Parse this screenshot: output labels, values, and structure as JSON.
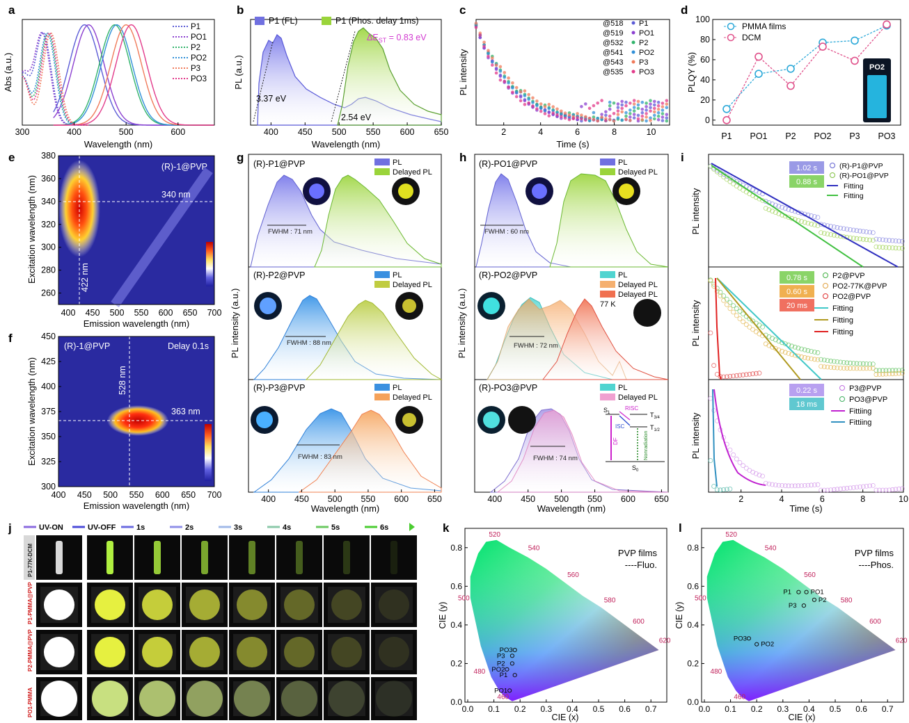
{
  "colors": {
    "P1": "#5b5bd6",
    "PO1": "#8b3fd0",
    "P2": "#2fb36a",
    "PO2": "#2f8fd8",
    "P3": "#f07a5a",
    "PO3": "#e23a8a"
  },
  "chart_data": [
    {
      "panel": "a",
      "type": "line",
      "xlabel": "Wavelength (nm)",
      "ylabel": "Abs (a.u.)",
      "xlim": [
        300,
        670
      ],
      "xticks": [
        300,
        400,
        500,
        600
      ],
      "series": [
        {
          "name": "P1",
          "abs_peak": 340,
          "pl_peak": 420
        },
        {
          "name": "PO1",
          "abs_peak": 338,
          "pl_peak": 428
        },
        {
          "name": "P2",
          "abs_peak": 350,
          "pl_peak": 478
        },
        {
          "name": "PO2",
          "abs_peak": 348,
          "pl_peak": 482
        },
        {
          "name": "P3",
          "abs_peak": 355,
          "pl_peak": 500
        },
        {
          "name": "PO3",
          "abs_peak": 352,
          "pl_peak": 510
        }
      ]
    },
    {
      "panel": "b",
      "type": "area",
      "xlabel": "Wavelength (nm)",
      "ylabel": "PL (a.u.)",
      "xlim": [
        370,
        650
      ],
      "xticks": [
        400,
        450,
        500,
        550,
        600,
        650
      ],
      "series": [
        {
          "name": "P1 (FL)",
          "peak": 405
        },
        {
          "name": "P1 (Phos. delay 1ms)",
          "peak": 525
        }
      ],
      "annotations": [
        "3.37 eV",
        "2.54 eV",
        "ΔE",
        "ST",
        " = 0.83 eV"
      ]
    },
    {
      "panel": "c",
      "type": "scatter",
      "xlabel": "Time (s)",
      "ylabel": "PL intensity",
      "xlim": [
        0.5,
        11
      ],
      "xticks": [
        2,
        4,
        6,
        8,
        10
      ],
      "series": [
        {
          "name": "P1",
          "wl": "@518"
        },
        {
          "name": "PO1",
          "wl": "@519"
        },
        {
          "name": "P2",
          "wl": "@532"
        },
        {
          "name": "PO2",
          "wl": "@541"
        },
        {
          "name": "P3",
          "wl": "@543"
        },
        {
          "name": "PO3",
          "wl": "@535"
        }
      ]
    },
    {
      "panel": "d",
      "type": "line",
      "xlabel": "",
      "ylabel": "PLQY (%)",
      "categories": [
        "P1",
        "PO1",
        "P2",
        "PO2",
        "P3",
        "PO3"
      ],
      "ylim": [
        -5,
        100
      ],
      "yticks": [
        0,
        20,
        40,
        60,
        80,
        100
      ],
      "series": [
        {
          "name": "PMMA films",
          "values": [
            11,
            46,
            51,
            77,
            79,
            94
          ]
        },
        {
          "name": "DCM",
          "values": [
            0,
            63,
            34,
            73,
            59,
            95
          ]
        }
      ],
      "inset": "PO2"
    },
    {
      "panel": "e",
      "type": "heatmap",
      "title": "(R)-1@PVP",
      "xlabel": "Emission wavelength (nm)",
      "ylabel": "Excitation wavelength (nm)",
      "xlim": [
        380,
        700
      ],
      "ylim": [
        250,
        380
      ],
      "xticks": [
        400,
        450,
        500,
        550,
        600,
        650,
        700
      ],
      "yticks": [
        260,
        280,
        300,
        320,
        340,
        360,
        380
      ],
      "peak_em": 422,
      "peak_ex": 340,
      "notes": [
        "340 nm",
        "422 nm"
      ]
    },
    {
      "panel": "f",
      "type": "heatmap",
      "title": "(R)-1@PVP",
      "subtitle": "Delay 0.1s",
      "xlabel": "Emission wavelength (nm)",
      "ylabel": "Excitation wavelength (nm)",
      "xlim": [
        400,
        700
      ],
      "ylim": [
        300,
        450
      ],
      "xticks": [
        400,
        450,
        500,
        550,
        600,
        650,
        700
      ],
      "yticks": [
        300,
        325,
        350,
        375,
        400,
        425,
        450
      ],
      "peak_em": 528,
      "peak_ex": 363,
      "notes": [
        "528 nm",
        "363 nm"
      ]
    },
    {
      "panel": "g",
      "type": "area",
      "xlabel": "Wavelength (nm)",
      "ylabel": "PL intensity (a.u.)",
      "xlim": [
        370,
        660
      ],
      "xticks": [
        400,
        450,
        500,
        550,
        600,
        650
      ],
      "subpanels": [
        {
          "title": "(R)-P1@PVP",
          "pl_peak": 425,
          "delayed_peak": 520,
          "fwhm": "FWHM : 71 nm"
        },
        {
          "title": "(R)-P2@PVP",
          "pl_peak": 465,
          "delayed_peak": 550,
          "fwhm": "FWHM : 88 nm"
        },
        {
          "title": "(R)-P3@PVP",
          "pl_peak": 480,
          "delayed_peak": 555,
          "fwhm": "FWHM : 83 nm"
        }
      ],
      "legend": [
        "PL",
        "Delayed PL"
      ]
    },
    {
      "panel": "h",
      "type": "area",
      "xlabel": "Wavelength (nm)",
      "ylabel": "PL intensity (a.u.)",
      "xlim": [
        370,
        660
      ],
      "xticks": [
        400,
        450,
        500,
        550,
        600,
        650
      ],
      "subpanels": [
        {
          "title": "(R)-PO1@PVP",
          "pl_peak": 410,
          "delayed_peak": 530,
          "fwhm": "FWHM : 60 nm",
          "legend": [
            "PL",
            "Delayed PL"
          ]
        },
        {
          "title": "(R)-PO2@PVP",
          "pl_peak": 455,
          "delayed_peak": 535,
          "fwhm": "FWHM : 72 nm",
          "legend": [
            "PL",
            "Delayed PL",
            "Delayed PL",
            "77 K"
          ]
        },
        {
          "title": "(R)-PO3@PVP",
          "pl_peak": 490,
          "delayed_peak": 490,
          "fwhm": "FWHM : 74 nm",
          "legend": [
            "PL",
            "Delayed PL"
          ]
        }
      ],
      "diagram": [
        "S",
        "1",
        "RISC",
        "T",
        "3/4",
        "ISC",
        "T",
        "1/2",
        "DF",
        "Nonradiation",
        "S",
        "0"
      ]
    },
    {
      "panel": "i",
      "type": "scatter",
      "xlabel": "Time (s)",
      "ylabel": "PL intensity",
      "xlim": [
        0.4,
        10
      ],
      "xticks": [
        2,
        4,
        6,
        8,
        10
      ],
      "subpanels": [
        {
          "tags": [
            "1.02 s",
            "0.88 s"
          ],
          "legend": [
            "(R)-P1@PVP",
            "(R)-PO1@PVP",
            "Fitting",
            "Fitting"
          ]
        },
        {
          "tags": [
            "0.78 s",
            "0.60 s",
            "20 ms"
          ],
          "legend": [
            "P2@PVP",
            "PO2-77K@PVP",
            "PO2@PVP",
            "Fitting",
            "Fitting",
            "Fitting"
          ]
        },
        {
          "tags": [
            "0.22 s",
            "18 ms"
          ],
          "legend": [
            "P3@PVP",
            "PO3@PVP",
            "Fittiing",
            "Fittiing"
          ]
        }
      ]
    },
    {
      "panel": "k",
      "type": "scatter",
      "title": "PVP films",
      "subtitle": "----Fluo.",
      "xlabel": "CIE (x)",
      "ylabel": "CIE (y)",
      "xlim": [
        0,
        0.75
      ],
      "ylim": [
        0,
        0.9
      ],
      "xticks": [
        0.0,
        0.1,
        0.2,
        0.3,
        0.4,
        0.5,
        0.6,
        0.7
      ],
      "yticks": [
        0.0,
        0.2,
        0.4,
        0.6,
        0.8
      ],
      "wavelength_marks": [
        "460",
        "480",
        "500",
        "520",
        "540",
        "560",
        "580",
        "600",
        "620"
      ],
      "points": [
        {
          "label": "PO3",
          "x": 0.18,
          "y": 0.27
        },
        {
          "label": "P3",
          "x": 0.17,
          "y": 0.24
        },
        {
          "label": "P2",
          "x": 0.17,
          "y": 0.2
        },
        {
          "label": "PO2",
          "x": 0.15,
          "y": 0.17
        },
        {
          "label": "P1",
          "x": 0.18,
          "y": 0.14
        },
        {
          "label": "PO1",
          "x": 0.16,
          "y": 0.06
        }
      ]
    },
    {
      "panel": "l",
      "type": "scatter",
      "title": "PVP films",
      "subtitle": "----Phos.",
      "xlabel": "CIE (x)",
      "ylabel": "CIE (y)",
      "xlim": [
        0,
        0.75
      ],
      "ylim": [
        0,
        0.9
      ],
      "xticks": [
        0.0,
        0.1,
        0.2,
        0.3,
        0.4,
        0.5,
        0.6,
        0.7
      ],
      "yticks": [
        0.0,
        0.2,
        0.4,
        0.6,
        0.8
      ],
      "wavelength_marks": [
        "460",
        "480",
        "500",
        "520",
        "540",
        "560",
        "580",
        "600",
        "620"
      ],
      "points": [
        {
          "label": "P1",
          "x": 0.36,
          "y": 0.57
        },
        {
          "label": "PO1",
          "x": 0.39,
          "y": 0.57
        },
        {
          "label": "P2",
          "x": 0.42,
          "y": 0.53
        },
        {
          "label": "P3",
          "x": 0.38,
          "y": 0.5
        },
        {
          "label": "PO3",
          "x": 0.17,
          "y": 0.33
        },
        {
          "label": "PO2",
          "x": 0.2,
          "y": 0.3
        }
      ]
    }
  ],
  "panel_j": {
    "legend": [
      "UV-ON",
      "UV-OFF",
      "1s",
      "2s",
      "3s",
      "4s",
      "5s",
      "6s"
    ],
    "rows": [
      "P1-77K-DCM",
      "P1-PMMA@PVP",
      "P2-PMMA@PVP",
      "PO1-PMMA"
    ]
  },
  "panel_letters": [
    "a",
    "b",
    "c",
    "d",
    "e",
    "f",
    "g",
    "h",
    "i",
    "j",
    "k",
    "l"
  ]
}
